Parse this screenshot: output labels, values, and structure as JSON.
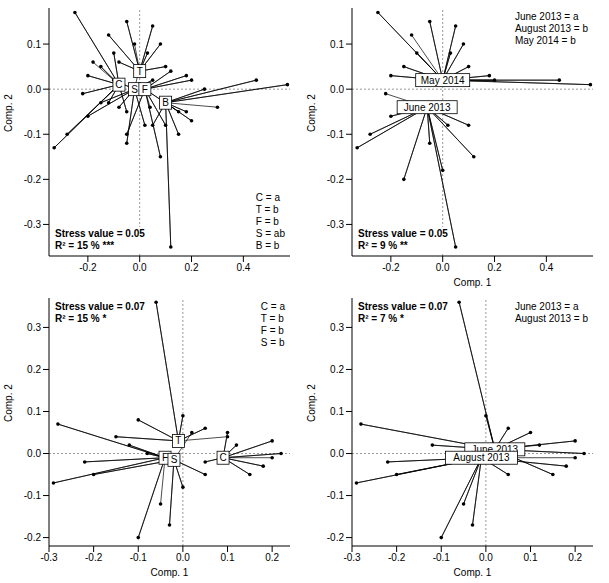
{
  "chart_data": [
    {
      "type": "scatter",
      "y_label": "Comp. 2",
      "xlim": [
        -0.35,
        0.58
      ],
      "ylim": [
        -0.37,
        0.18
      ],
      "xticks": [
        -0.2,
        {
          "value": 0,
          "label": "0.0"
        },
        0.2,
        0.4
      ],
      "yticks": [
        -0.3,
        -0.2,
        -0.1,
        {
          "value": 0,
          "label": "0.0"
        },
        0.1
      ],
      "ref_x": 0,
      "ref_y": 0,
      "annotations": [
        "Stress value = 0.05",
        "R² = 15 % ***"
      ],
      "group_letters": [
        "C = a",
        "T = b",
        "F = b",
        "S = ab",
        "B = b"
      ],
      "legend": "lower right",
      "series": [
        {
          "name": "C",
          "centroid": [
            -0.08,
            0.01
          ],
          "x": [
            -0.25,
            -0.33,
            -0.28,
            -0.2,
            -0.15,
            -0.12,
            -0.22,
            -0.1,
            -0.05,
            -0.18
          ],
          "y": [
            0.17,
            -0.13,
            -0.1,
            0.03,
            0.05,
            -0.03,
            -0.01,
            0.08,
            -0.05,
            0.06
          ]
        },
        {
          "name": "T",
          "centroid": [
            0.0,
            0.04
          ],
          "x": [
            -0.12,
            -0.05,
            0.05,
            0.08,
            -0.08,
            0.1,
            0.03,
            -0.02
          ],
          "y": [
            0.12,
            0.15,
            0.14,
            0.1,
            0.06,
            0.05,
            0.08,
            0.1
          ]
        },
        {
          "name": "S",
          "centroid": [
            -0.02,
            0.0
          ],
          "x": [
            -0.15,
            -0.1,
            -0.05,
            0.02,
            -0.2,
            0.05,
            -0.08,
            0.0
          ],
          "y": [
            -0.03,
            0.02,
            -0.12,
            -0.08,
            -0.06,
            0.02,
            -0.04,
            0.05
          ]
        },
        {
          "name": "F",
          "centroid": [
            0.02,
            0.0
          ],
          "x": [
            0.08,
            0.15,
            0.2,
            0.12,
            -0.05,
            0.1,
            0.18,
            0.04
          ],
          "y": [
            -0.15,
            -0.05,
            0.02,
            0.04,
            -0.1,
            -0.08,
            0.03,
            -0.04
          ]
        },
        {
          "name": "B",
          "centroid": [
            0.1,
            -0.03
          ],
          "x": [
            0.12,
            0.45,
            0.57,
            0.2,
            0.15,
            0.05,
            0.25,
            0.18,
            0.3
          ],
          "y": [
            -0.35,
            0.02,
            0.01,
            -0.07,
            -0.1,
            -0.08,
            0.0,
            -0.05,
            -0.04
          ]
        }
      ]
    },
    {
      "type": "scatter",
      "x_label": "Comp. 1",
      "y_label": "Comp. 2",
      "xlim": [
        -0.35,
        0.58
      ],
      "ylim": [
        -0.37,
        0.18
      ],
      "xticks": [
        -0.2,
        {
          "value": 0,
          "label": "0.0"
        },
        0.2,
        0.4
      ],
      "yticks": [
        -0.3,
        -0.2,
        -0.1,
        {
          "value": 0,
          "label": "0.0"
        },
        0.1
      ],
      "ref_x": 0,
      "ref_y": 0,
      "annotations": [
        "Stress value = 0.05",
        "R² = 9 % **"
      ],
      "group_letters": [
        "June 2013 = a",
        "August 2013 = b",
        "May 2014 = b"
      ],
      "legend": "upper right",
      "series": [
        {
          "name": "May 2014",
          "centroid": [
            0.0,
            0.02
          ],
          "x": [
            -0.25,
            -0.2,
            -0.15,
            -0.1,
            0.05,
            0.08,
            0.1,
            0.2,
            0.45,
            0.57,
            -0.05,
            0.03,
            0.18,
            -0.12
          ],
          "y": [
            0.17,
            0.03,
            0.05,
            0.08,
            0.14,
            0.1,
            0.05,
            0.02,
            0.02,
            0.01,
            0.15,
            0.08,
            0.03,
            0.12
          ]
        },
        {
          "name": "June 2013",
          "centroid": [
            -0.06,
            -0.04
          ],
          "x": [
            -0.33,
            -0.28,
            -0.12,
            -0.05,
            0.02,
            0.05,
            0.12,
            0.1,
            -0.2,
            -0.15,
            0.0,
            -0.22
          ],
          "y": [
            -0.13,
            -0.1,
            -0.03,
            -0.12,
            -0.08,
            -0.35,
            -0.15,
            -0.08,
            -0.06,
            -0.2,
            -0.18,
            -0.01
          ]
        }
      ]
    },
    {
      "type": "scatter",
      "x_label": "Comp. 1",
      "y_label": "Comp. 2",
      "xlim": [
        -0.3,
        0.24
      ],
      "ylim": [
        -0.22,
        0.37
      ],
      "xticks": [
        -0.3,
        -0.2,
        -0.1,
        {
          "value": 0,
          "label": "0.0"
        },
        0.1,
        0.2
      ],
      "yticks": [
        -0.2,
        -0.1,
        {
          "value": 0,
          "label": "0.0"
        },
        0.1,
        0.2,
        0.3
      ],
      "ref_x": 0,
      "ref_y": 0,
      "annotations": [
        "Stress value = 0.07",
        "R² = 15 % *"
      ],
      "group_letters": [
        "C = a",
        "T = b",
        "F = b",
        "S = b"
      ],
      "legend": "upper right",
      "series": [
        {
          "name": "T",
          "centroid": [
            -0.01,
            0.03
          ],
          "x": [
            -0.06,
            -0.1,
            0.0,
            0.05,
            -0.15,
            0.1
          ],
          "y": [
            0.36,
            0.08,
            0.09,
            0.06,
            0.04,
            0.04
          ]
        },
        {
          "name": "F",
          "centroid": [
            -0.04,
            -0.01
          ],
          "x": [
            -0.28,
            -0.29,
            -0.22,
            -0.1,
            -0.12,
            -0.05
          ],
          "y": [
            0.07,
            -0.07,
            -0.02,
            -0.2,
            0.02,
            -0.12
          ]
        },
        {
          "name": "S",
          "centroid": [
            -0.02,
            -0.015
          ],
          "x": [
            -0.2,
            -0.03,
            0.0,
            -0.08,
            0.05,
            0.02
          ],
          "y": [
            -0.05,
            -0.17,
            -0.08,
            0.0,
            -0.05,
            0.05
          ]
        },
        {
          "name": "C",
          "centroid": [
            0.09,
            -0.01
          ],
          "x": [
            0.22,
            0.2,
            0.15,
            0.1,
            0.05,
            0.18,
            0.12,
            0.2
          ],
          "y": [
            0.0,
            0.03,
            -0.05,
            0.05,
            -0.02,
            -0.03,
            0.02,
            -0.01
          ]
        }
      ]
    },
    {
      "type": "scatter",
      "x_label": "Comp. 1",
      "y_label": "Comp. 2",
      "xlim": [
        -0.3,
        0.24
      ],
      "ylim": [
        -0.22,
        0.37
      ],
      "xticks": [
        -0.3,
        -0.2,
        -0.1,
        {
          "value": 0,
          "label": "0.0"
        },
        0.1,
        0.2
      ],
      "yticks": [
        -0.2,
        -0.1,
        {
          "value": 0,
          "label": "0.0"
        },
        0.1,
        0.2,
        0.3
      ],
      "ref_x": 0,
      "ref_y": 0,
      "annotations": [
        "Stress value = 0.07",
        "R² = 7 % *"
      ],
      "group_letters": [
        "June 2013 = a",
        "August 2013 = b"
      ],
      "legend": "upper right",
      "series": [
        {
          "name": "June 2013",
          "centroid": [
            0.02,
            0.01
          ],
          "x": [
            -0.06,
            -0.28,
            0.22,
            0.2,
            0.1,
            0.0,
            0.05,
            0.15,
            -0.12,
            0.12
          ],
          "y": [
            0.36,
            0.07,
            0.0,
            0.03,
            0.05,
            0.09,
            0.06,
            -0.05,
            0.02,
            0.02
          ]
        },
        {
          "name": "August 2013",
          "centroid": [
            -0.01,
            -0.01
          ],
          "x": [
            -0.29,
            -0.22,
            -0.1,
            -0.05,
            -0.03,
            0.18,
            -0.2,
            0.05,
            -0.08,
            0.2
          ],
          "y": [
            -0.07,
            -0.02,
            -0.2,
            -0.12,
            -0.17,
            -0.03,
            -0.05,
            -0.05,
            0.0,
            -0.01
          ]
        }
      ]
    }
  ]
}
